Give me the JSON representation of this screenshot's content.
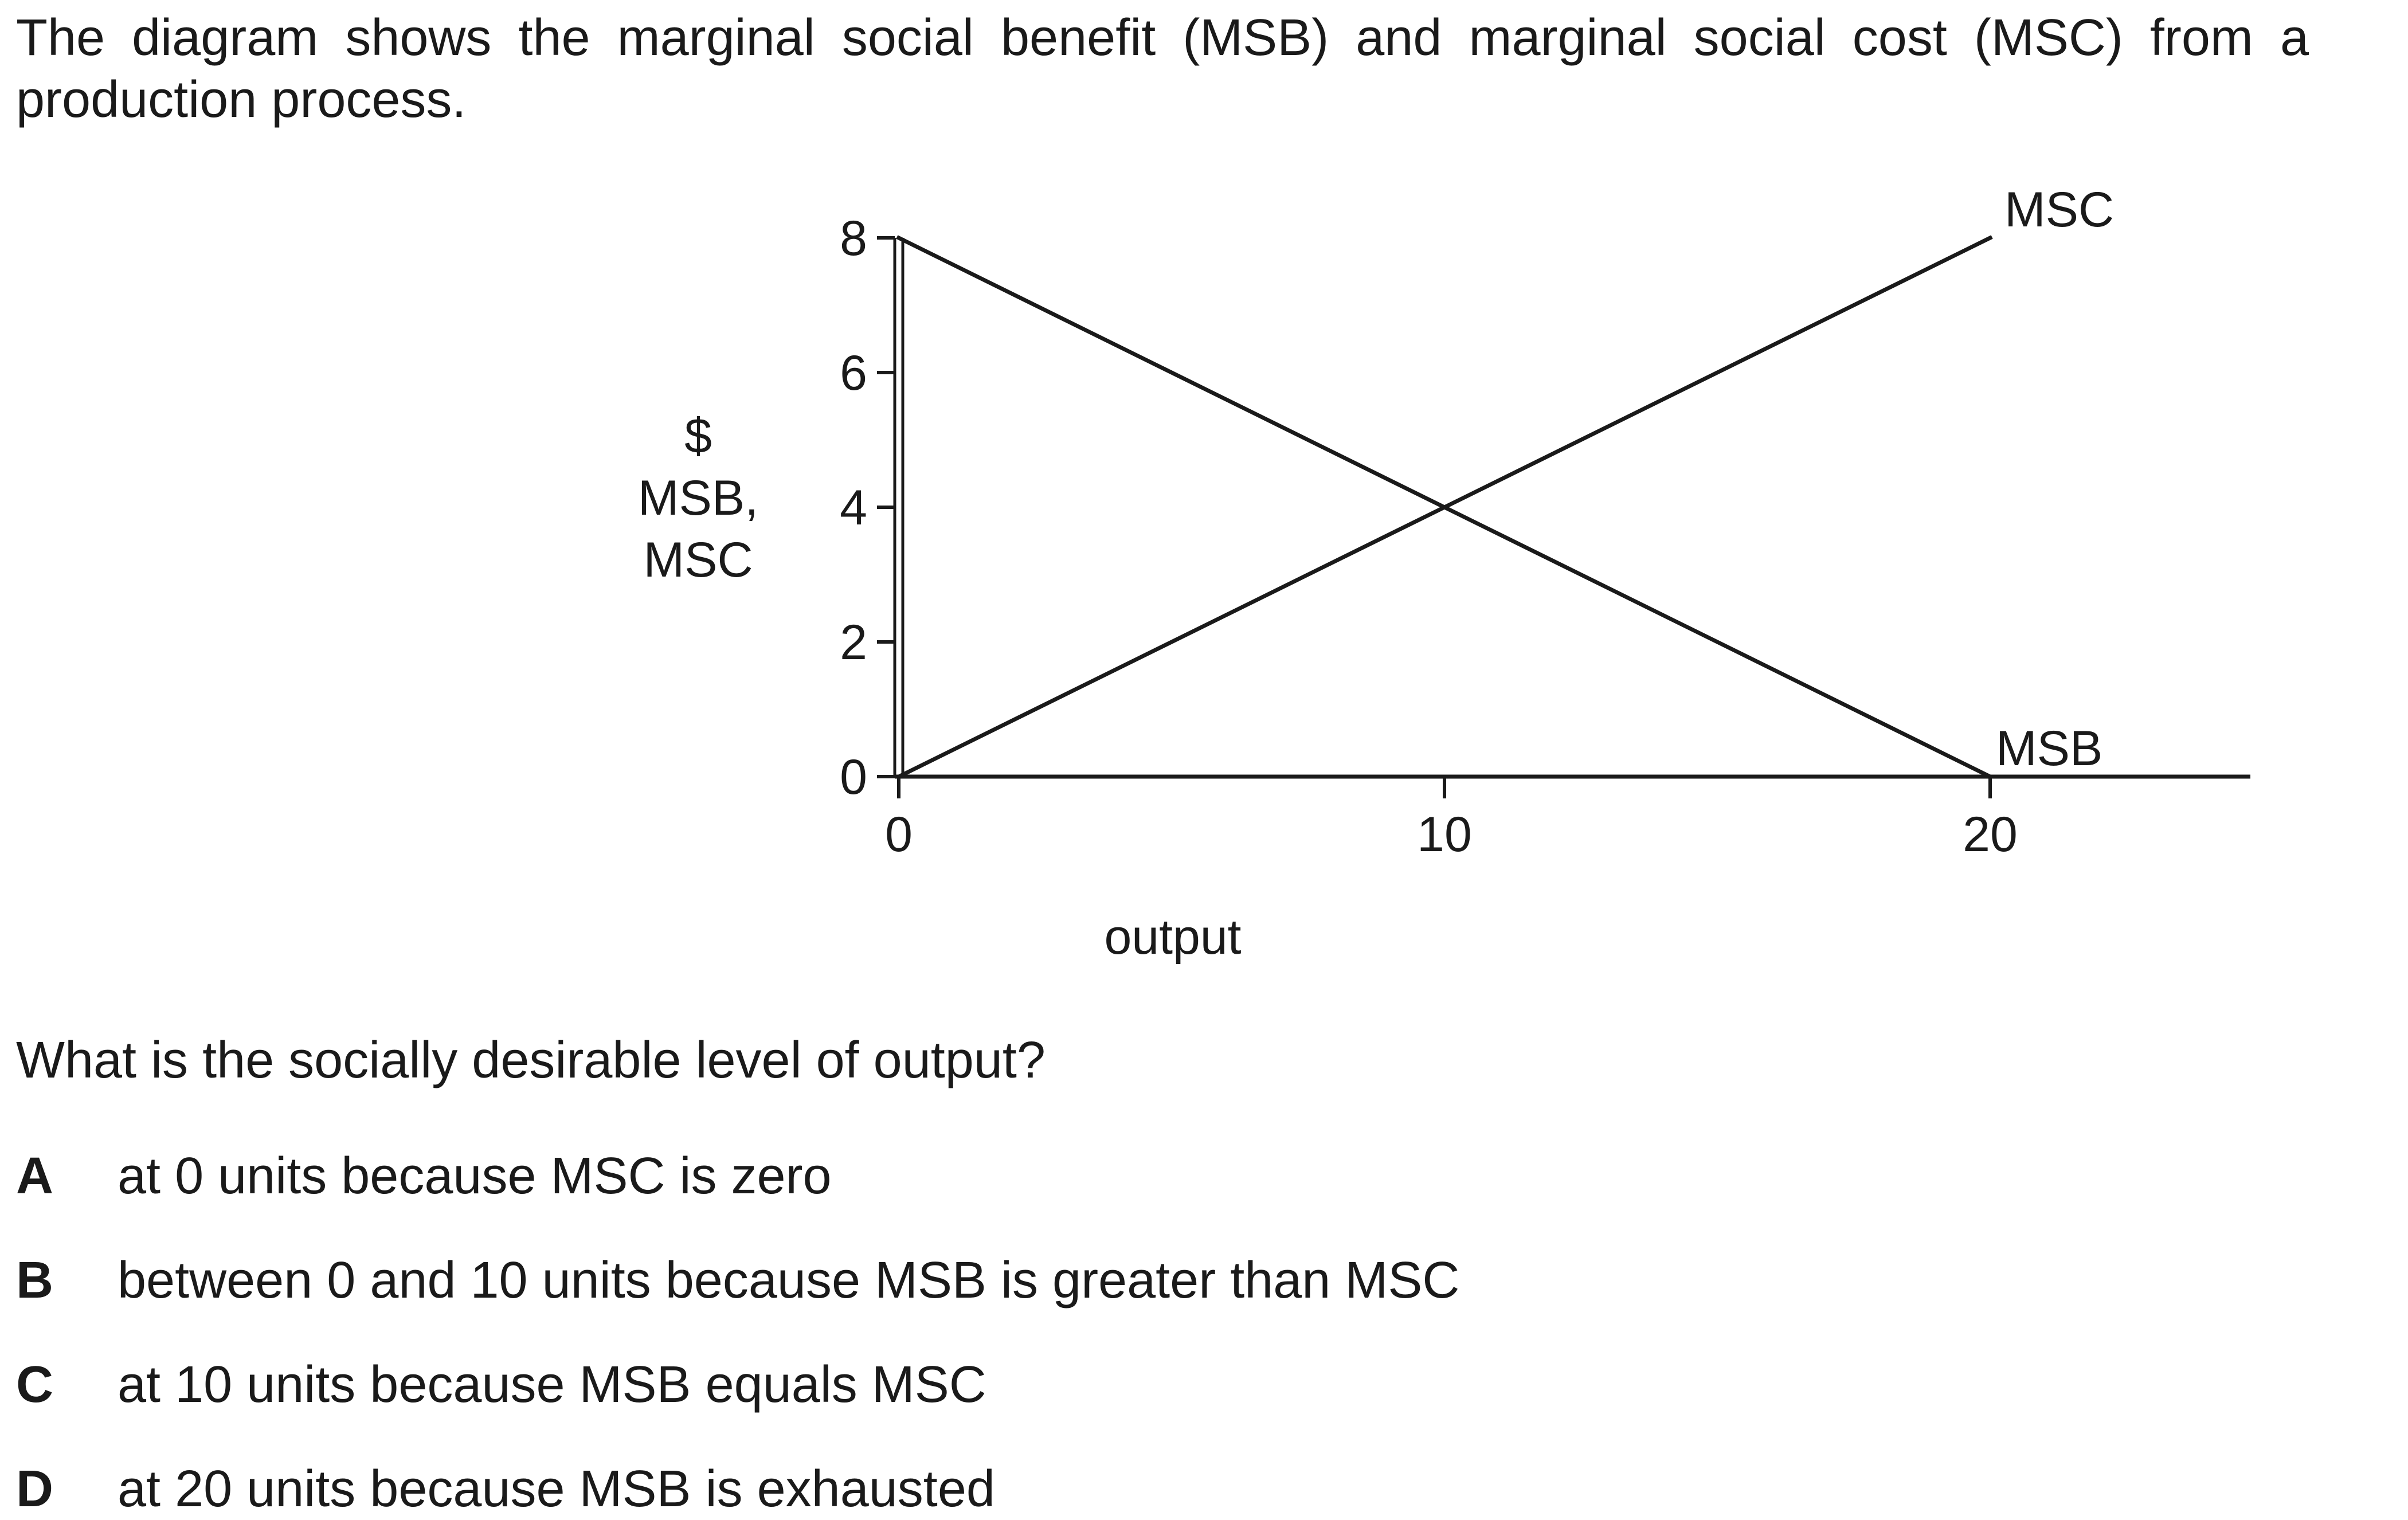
{
  "intro_text": "The diagram shows the marginal social benefit (MSB) and marginal social cost (MSC) from a production process.",
  "question": "What is the socially desirable level of output?",
  "options": [
    {
      "letter": "A",
      "text": "at 0 units because MSC is zero"
    },
    {
      "letter": "B",
      "text": "between 0 and 10 units because MSB is greater than MSC"
    },
    {
      "letter": "C",
      "text": "at 10 units because MSB equals MSC"
    },
    {
      "letter": "D",
      "text": "at 20 units because MSB is exhausted"
    }
  ],
  "chart_data": {
    "type": "line",
    "xlabel": "output",
    "ylabel": [
      "$",
      "MSB,",
      "MSC"
    ],
    "xlim": [
      0,
      25
    ],
    "ylim": [
      0,
      8
    ],
    "xticks": [
      0,
      10,
      20
    ],
    "yticks": [
      0,
      2,
      4,
      6,
      8
    ],
    "grid": false,
    "series": [
      {
        "name": "MSC",
        "x": [
          0,
          20
        ],
        "y": [
          0,
          8
        ]
      },
      {
        "name": "MSB",
        "x": [
          0,
          20
        ],
        "y": [
          8,
          0
        ]
      }
    ],
    "line_color": "#1a1a1a"
  }
}
